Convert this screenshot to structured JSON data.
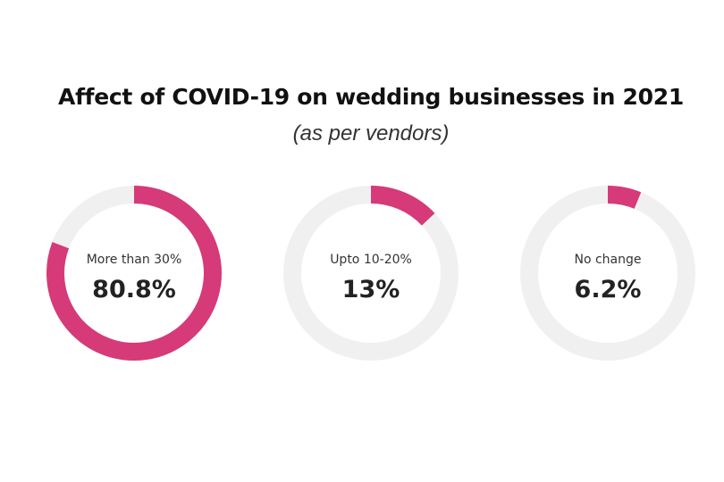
{
  "chart_data": {
    "type": "pie",
    "title": "Affect of COVID-19 on wedding businesses in 2021",
    "subtitle": "(as per vendors)",
    "style": "donut",
    "colors": {
      "filled": "#d63a78",
      "track": "#f0f0f0"
    },
    "items": [
      {
        "label": "More than 30%",
        "value": 80.8,
        "display": "80.8%"
      },
      {
        "label": "Upto 10-20%",
        "value": 13,
        "display": "13%"
      },
      {
        "label": "No change",
        "value": 6.2,
        "display": "6.2%"
      }
    ]
  }
}
